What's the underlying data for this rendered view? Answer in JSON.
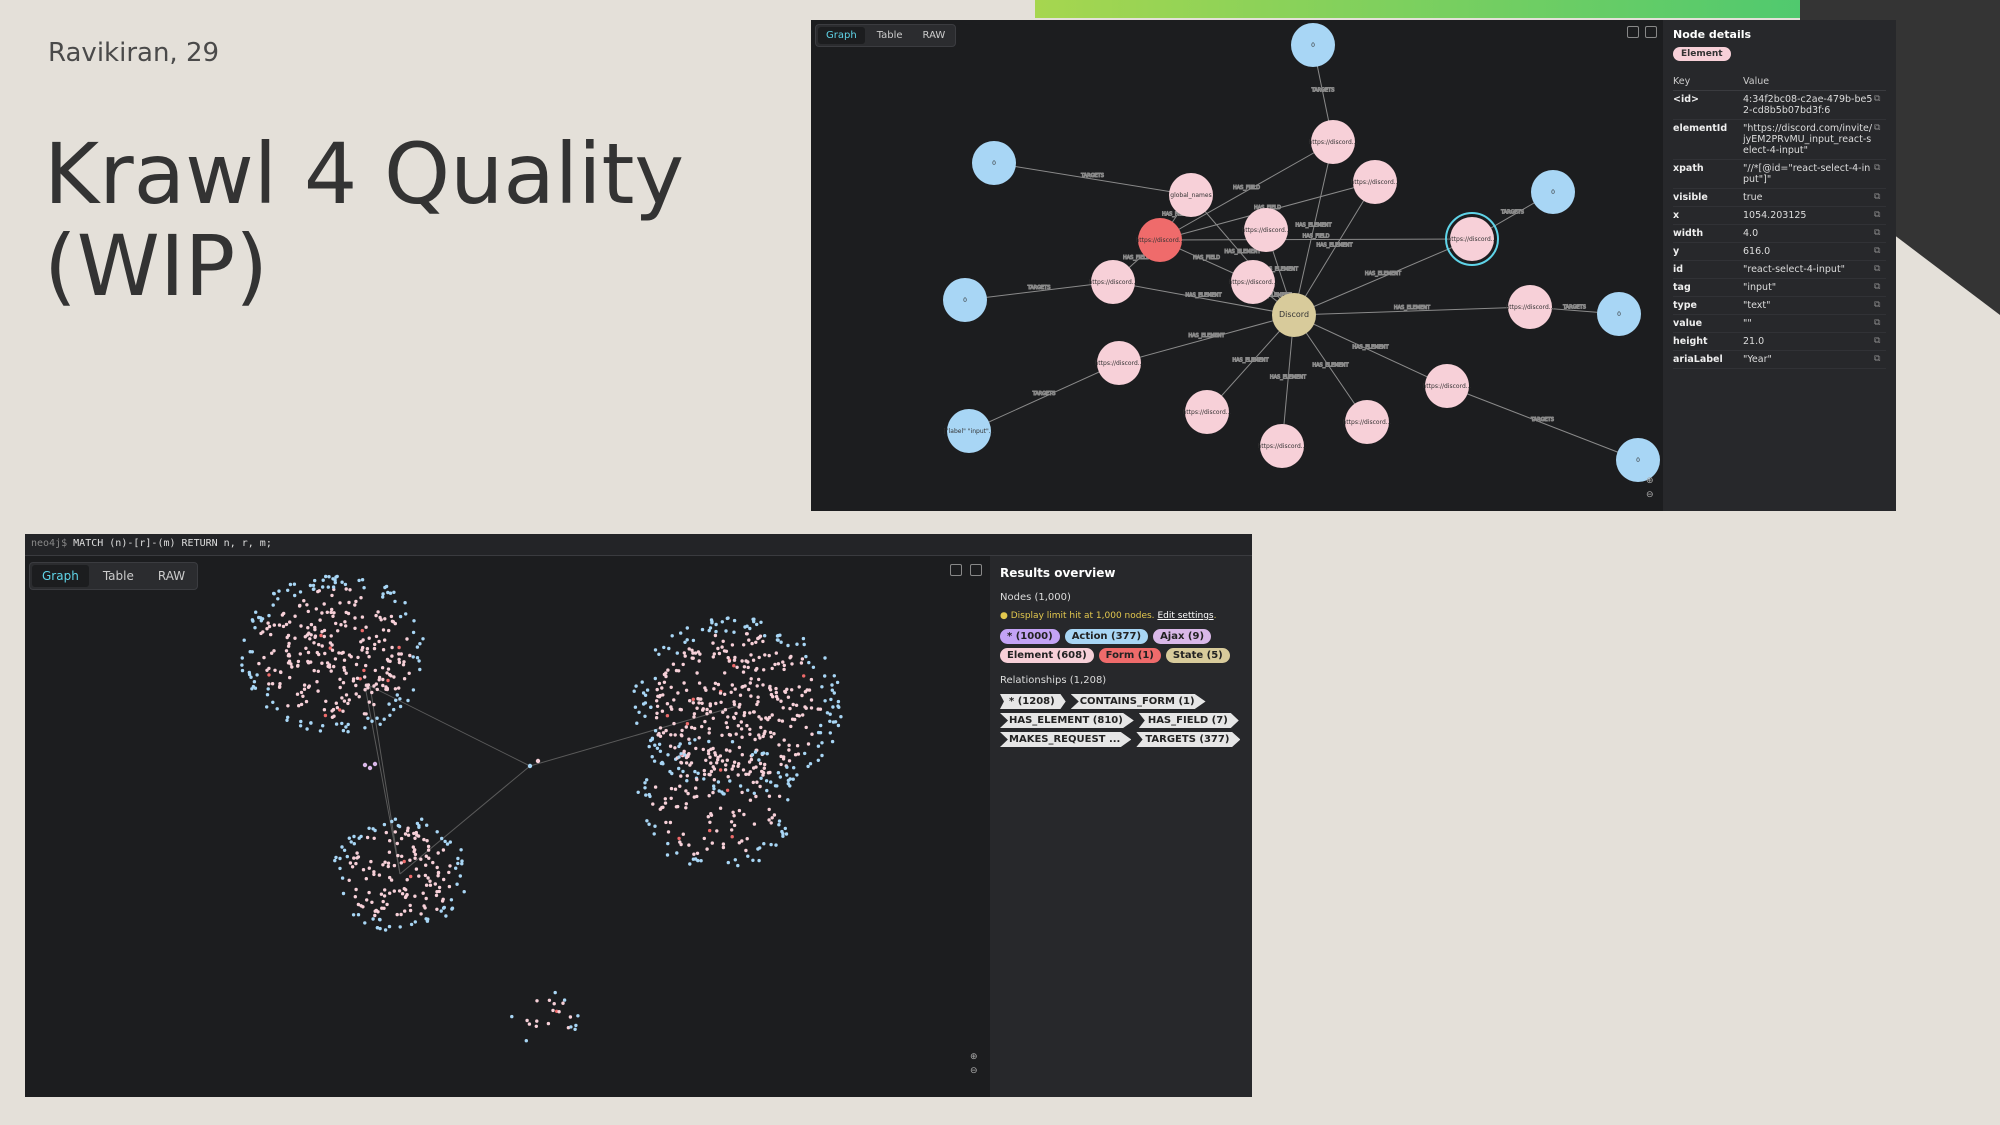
{
  "slide": {
    "author": "Ravikiran, 29",
    "title": "Krawl 4 Quality (WIP)"
  },
  "top_panel": {
    "tabs": [
      "Graph",
      "Table",
      "RAW"
    ],
    "active_tab": "Graph",
    "details": {
      "heading": "Node details",
      "label": "Element",
      "col_key": "Key",
      "col_value": "Value",
      "rows": [
        {
          "k": "<id>",
          "v": "4:34f2bc08-c2ae-479b-be52-cd8b5b07bd3f:6"
        },
        {
          "k": "elementId",
          "v": "\"https://discord.com/invite/jyEM2PRvMU_input_react-select-4-input\""
        },
        {
          "k": "xpath",
          "v": "\"//*[@id=\"react-select-4-input\"]\""
        },
        {
          "k": "visible",
          "v": "true"
        },
        {
          "k": "x",
          "v": "1054.203125"
        },
        {
          "k": "width",
          "v": "4.0"
        },
        {
          "k": "y",
          "v": "616.0"
        },
        {
          "k": "id",
          "v": "\"react-select-4-input\""
        },
        {
          "k": "tag",
          "v": "\"input\""
        },
        {
          "k": "type",
          "v": "\"text\""
        },
        {
          "k": "value",
          "v": "\"\""
        },
        {
          "k": "height",
          "v": "21.0"
        },
        {
          "k": "ariaLabel",
          "v": "\"Year\""
        }
      ]
    },
    "graph": {
      "center_label": "Discord",
      "edge_labels": [
        "TARGETS",
        "HAS_FIELD",
        "HAS_ELEMENT"
      ],
      "node_label_generic": "https://discord...",
      "node_label_global": "global_names",
      "node_label_label": "[\"label\" \"input\"...",
      "blue_node_glyph": "0"
    }
  },
  "bottom_panel": {
    "prompt": "neo4j$",
    "query": "MATCH (n)-[r]-(m) RETURN n, r, m;",
    "tabs": [
      "Graph",
      "Table",
      "RAW"
    ],
    "active_tab": "Graph",
    "results": {
      "heading": "Results overview",
      "nodes_label": "Nodes (1,000)",
      "warning": "Display limit hit at 1,000 nodes.",
      "warning_link": "Edit settings",
      "node_chips": [
        {
          "label": "* (1000)",
          "color": "#c3a3f5"
        },
        {
          "label": "Action (377)",
          "color": "#a8d6f5"
        },
        {
          "label": "Ajax (9)",
          "color": "#d9b8e8"
        },
        {
          "label": "Element (608)",
          "color": "#f7d0d8"
        },
        {
          "label": "Form (1)",
          "color": "#ef6b6b"
        },
        {
          "label": "State (5)",
          "color": "#d8cb9b"
        }
      ],
      "rels_label": "Relationships (1,208)",
      "rel_chips": [
        "* (1208)",
        "CONTAINS_FORM (1)",
        "HAS_ELEMENT (810)",
        "HAS_FIELD (7)",
        "MAKES_REQUEST ...",
        "TARGETS (377)"
      ]
    }
  },
  "colors": {
    "panel_bg": "#1c1d1f",
    "side_bg": "#27282b",
    "blue_node": "#a8d6f5",
    "pink_node": "#f7d0d8",
    "red_node": "#ef6b6b",
    "center_node": "#d8cb9b",
    "accent": "#5fd4e8"
  }
}
